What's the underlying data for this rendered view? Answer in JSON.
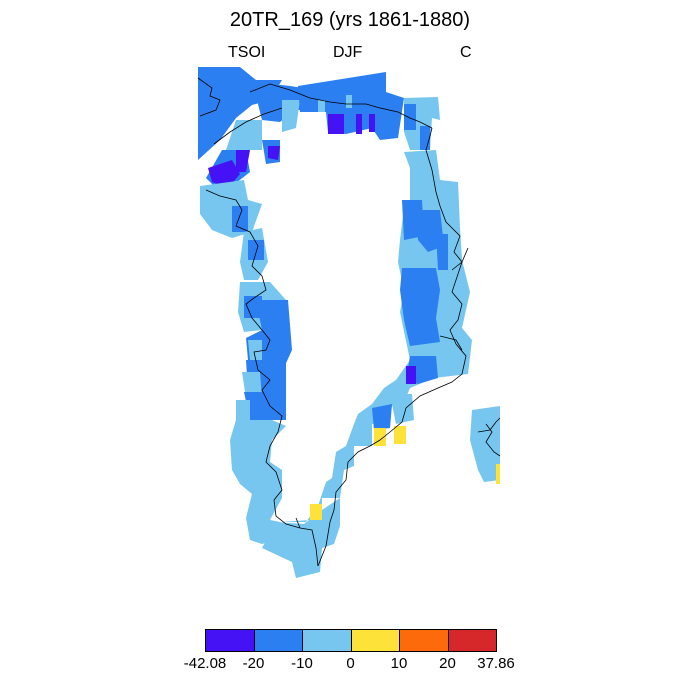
{
  "title": "20TR_169 (yrs 1861-1880)",
  "subtitle_left": "TSOI",
  "subtitle_center": "DJF",
  "subtitle_right": "C",
  "colors": {
    "c1": "#4412f5",
    "c2": "#2b7ff0",
    "c3": "#76c6f0",
    "c4": "#fde23a",
    "c5": "#fd6a0b",
    "c6": "#d6282a",
    "coast": "#000000"
  },
  "colorbar": {
    "labels": [
      "-42.08",
      "-20",
      "-10",
      "0",
      "10",
      "20",
      "37.86"
    ],
    "bins": [
      "c1",
      "c2",
      "c3",
      "c4",
      "c5",
      "c6"
    ]
  }
}
